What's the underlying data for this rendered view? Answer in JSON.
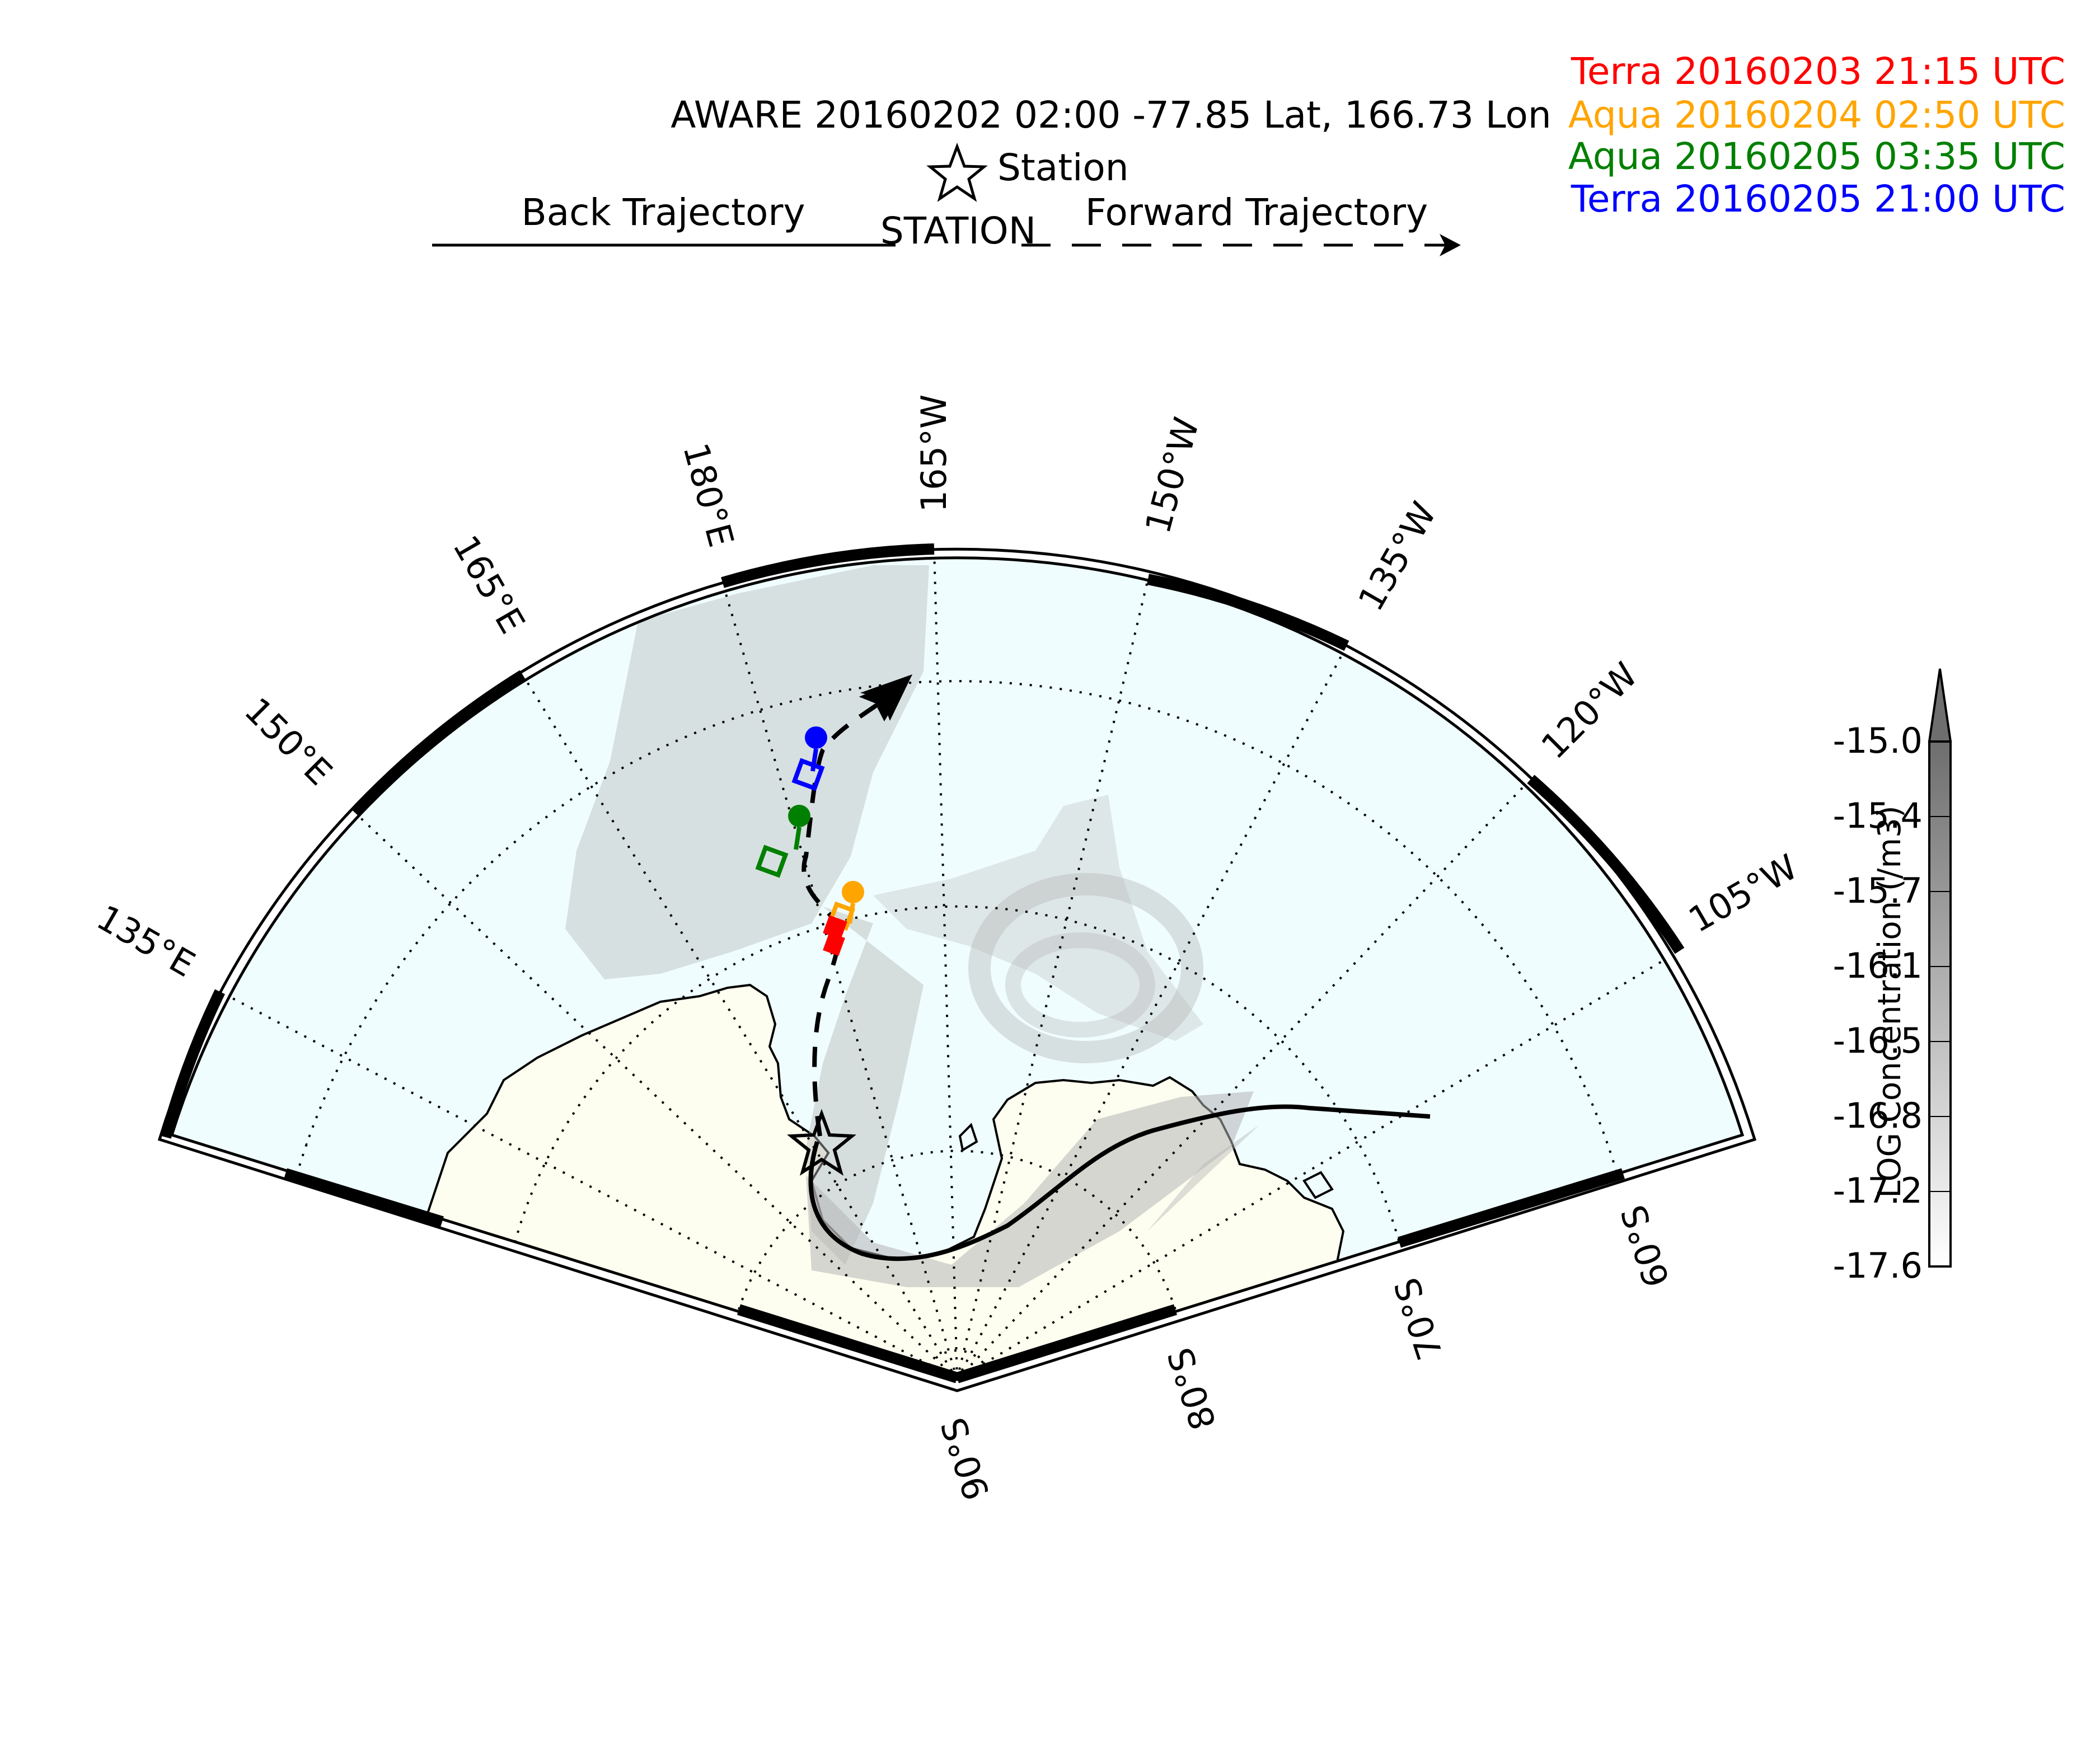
{
  "header": {
    "title": "AWARE 20160202 02:00  -77.85 Lat,  166.73 Lon",
    "station_label": "Station",
    "back_label": "Back Trajectory",
    "center_label": "STATION",
    "forward_label": "Forward Trajectory"
  },
  "overpasses": [
    {
      "label": "Terra 20160203 21:15 UTC",
      "color": "#ff0000"
    },
    {
      "label": "Aqua 20160204 02:50 UTC",
      "color": "#ffa500"
    },
    {
      "label": "Aqua 20160205 03:35 UTC",
      "color": "#008000"
    },
    {
      "label": "Terra 20160205 21:00 UTC",
      "color": "#0000ff"
    }
  ],
  "map": {
    "ocean_color": "#effdfe",
    "land_color": "#fdfeef",
    "lon_labels": [
      "135°E",
      "150°E",
      "165°E",
      "180°E",
      "165°W",
      "150°W",
      "135°W",
      "120°W",
      "105°W"
    ],
    "lat_labels": [
      "60°S",
      "70°S",
      "80°S",
      "90°S"
    ]
  },
  "colorbar": {
    "label": "LOG Concentration (/m3)",
    "ticks": [
      "-15.0",
      "-15.4",
      "-15.7",
      "-16.1",
      "-16.5",
      "-16.8",
      "-17.2",
      "-17.6"
    ]
  }
}
